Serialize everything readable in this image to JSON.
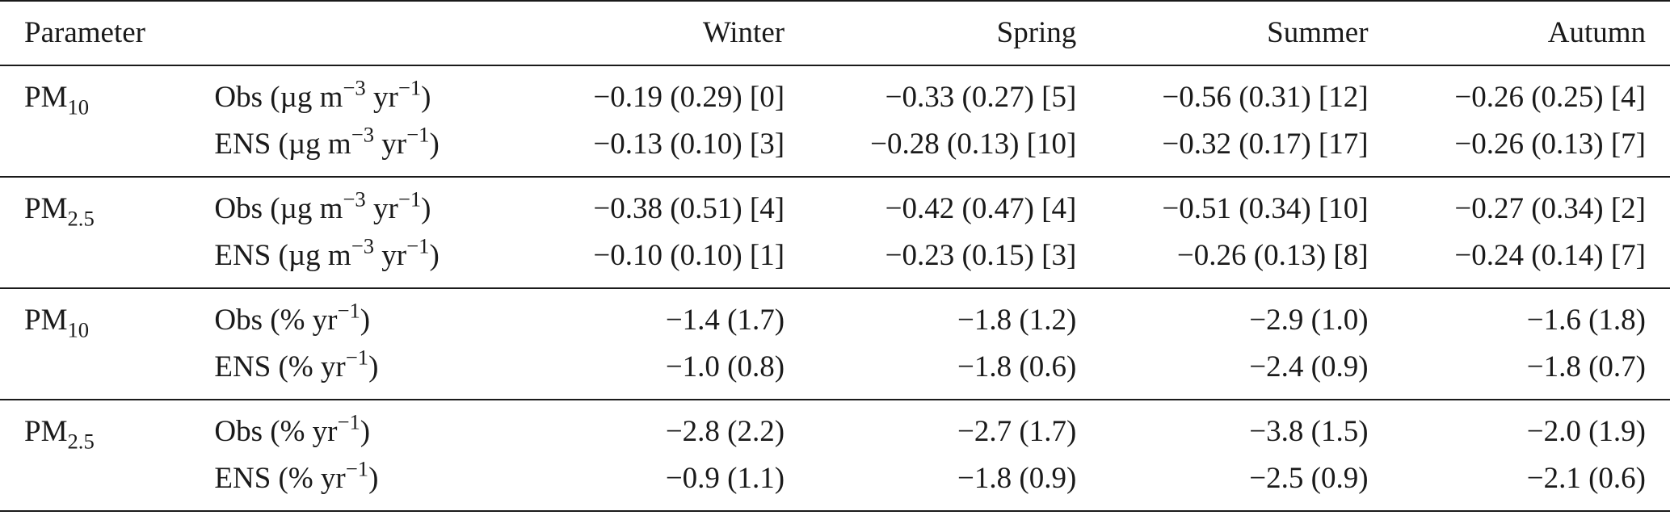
{
  "header": {
    "parameter": "Parameter",
    "seasons": [
      "Winter",
      "Spring",
      "Summer",
      "Autumn"
    ]
  },
  "groups": [
    {
      "param": "PM",
      "param_sub": "10",
      "rows": [
        {
          "label_pre": "Obs (µg m",
          "exp1": "−3",
          "label_mid": " yr",
          "exp2": "−1",
          "label_post": ")",
          "values": [
            "−0.19 (0.29) [0]",
            "−0.33 (0.27) [5]",
            "−0.56 (0.31) [12]",
            "−0.26 (0.25) [4]"
          ]
        },
        {
          "label_pre": "ENS (µg m",
          "exp1": "−3",
          "label_mid": " yr",
          "exp2": "−1",
          "label_post": ")",
          "values": [
            "−0.13 (0.10) [3]",
            "−0.28 (0.13) [10]",
            "−0.32 (0.17) [17]",
            "−0.26 (0.13) [7]"
          ]
        }
      ]
    },
    {
      "param": "PM",
      "param_sub": "2.5",
      "rows": [
        {
          "label_pre": "Obs (µg m",
          "exp1": "−3",
          "label_mid": " yr",
          "exp2": "−1",
          "label_post": ")",
          "values": [
            "−0.38 (0.51) [4]",
            "−0.42 (0.47) [4]",
            "−0.51 (0.34) [10]",
            "−0.27 (0.34) [2]"
          ]
        },
        {
          "label_pre": "ENS (µg m",
          "exp1": "−3",
          "label_mid": " yr",
          "exp2": "−1",
          "label_post": ")",
          "values": [
            "−0.10 (0.10) [1]",
            "−0.23 (0.15) [3]",
            "−0.26 (0.13) [8]",
            "−0.24 (0.14) [7]"
          ]
        }
      ]
    },
    {
      "param": "PM",
      "param_sub": "10",
      "rows": [
        {
          "label_pre": "Obs (% yr",
          "exp1": "−1",
          "label_post": ")",
          "values": [
            "−1.4 (1.7)",
            "−1.8 (1.2)",
            "−2.9 (1.0)",
            "−1.6 (1.8)"
          ]
        },
        {
          "label_pre": "ENS (% yr",
          "exp1": "−1",
          "label_post": ")",
          "values": [
            "−1.0 (0.8)",
            "−1.8 (0.6)",
            "−2.4 (0.9)",
            "−1.8 (0.7)"
          ]
        }
      ]
    },
    {
      "param": "PM",
      "param_sub": "2.5",
      "rows": [
        {
          "label_pre": "Obs (% yr",
          "exp1": "−1",
          "label_post": ")",
          "values": [
            "−2.8 (2.2)",
            "−2.7 (1.7)",
            "−3.8 (1.5)",
            "−2.0 (1.9)"
          ]
        },
        {
          "label_pre": "ENS (% yr",
          "exp1": "−1",
          "label_post": ")",
          "values": [
            "−0.9 (1.1)",
            "−1.8 (0.9)",
            "−2.5 (0.9)",
            "−2.1 (0.6)"
          ]
        }
      ]
    }
  ]
}
